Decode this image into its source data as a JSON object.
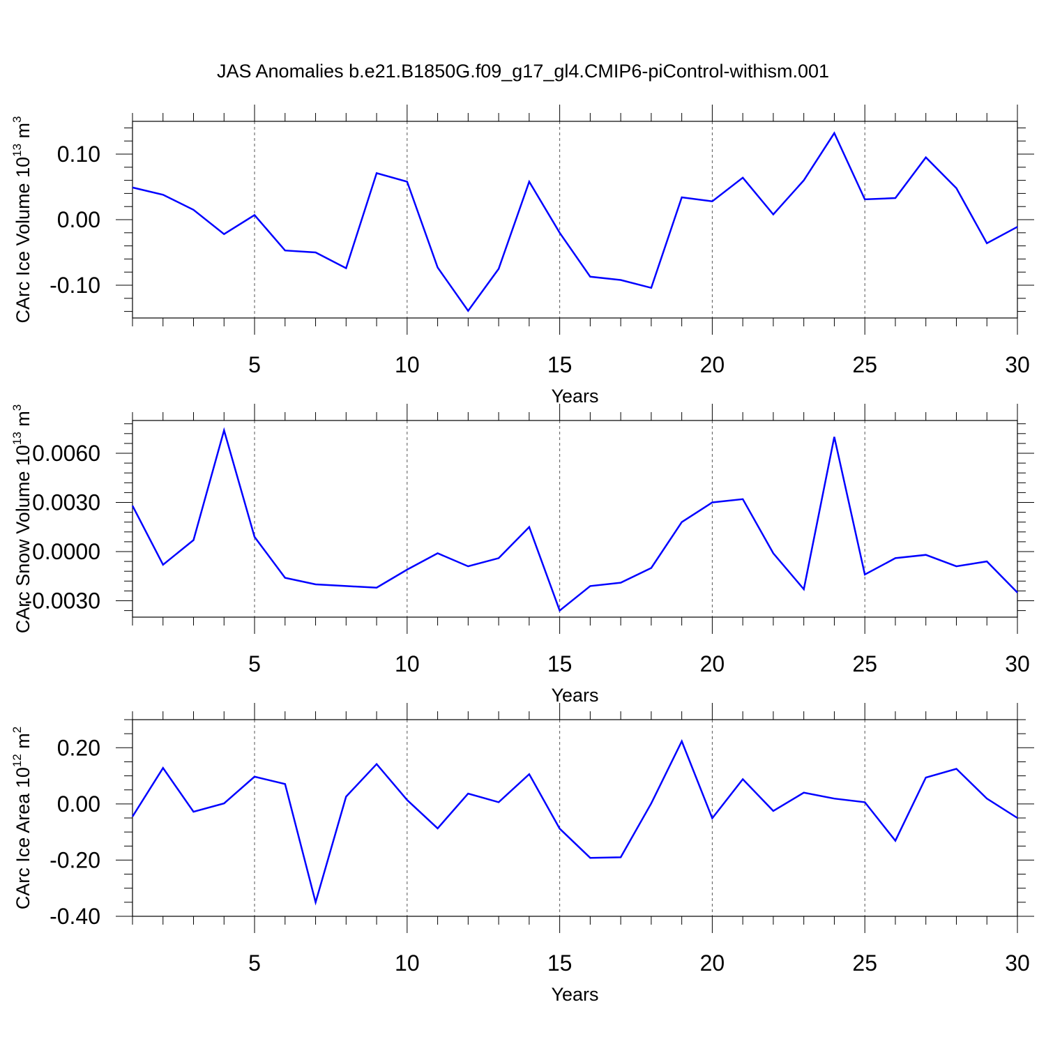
{
  "title": "JAS Anomalies b.e21.B1850G.f09_g17_gl4.CMIP6-piControl-withism.001",
  "chart_data": [
    {
      "type": "line",
      "ylabel_main": "CArc Ice Volume 10",
      "ylabel_exp": "13",
      "ylabel_unit": " m",
      "ylabel_unit_exp": "3",
      "xlabel": "Years",
      "xlim": [
        1,
        30
      ],
      "ylim": [
        -0.15,
        0.15
      ],
      "yticks": [
        -0.1,
        0.0,
        0.1
      ],
      "ytick_labels": [
        "-0.10",
        "0.00",
        "0.10"
      ],
      "y_minor_step": 0.02,
      "xticks": [
        5,
        10,
        15,
        20,
        25,
        30
      ],
      "xtick_labels": [
        "5",
        "10",
        "15",
        "20",
        "25",
        "30"
      ],
      "grid": "dashed vertical at major x ticks",
      "line_color": "#0000ff",
      "x": [
        1,
        2,
        3,
        4,
        5,
        6,
        7,
        8,
        9,
        10,
        11,
        12,
        13,
        14,
        15,
        16,
        17,
        18,
        19,
        20,
        21,
        22,
        23,
        24,
        25,
        26,
        27,
        28,
        29,
        30
      ],
      "y": [
        0.049,
        0.038,
        0.015,
        -0.022,
        0.007,
        -0.047,
        -0.05,
        -0.074,
        0.071,
        0.058,
        -0.073,
        -0.139,
        -0.075,
        0.058,
        -0.02,
        -0.087,
        -0.092,
        -0.104,
        0.034,
        0.028,
        0.064,
        0.008,
        0.06,
        0.132,
        0.031,
        0.033,
        0.095,
        0.048,
        -0.036,
        -0.011
      ]
    },
    {
      "type": "line",
      "ylabel_main": "CArc Snow Volume 10",
      "ylabel_exp": "13",
      "ylabel_unit": " m",
      "ylabel_unit_exp": "3",
      "xlabel": "Years",
      "xlim": [
        1,
        30
      ],
      "ylim": [
        -0.004,
        0.008
      ],
      "yticks": [
        -0.003,
        0.0,
        0.003,
        0.006
      ],
      "ytick_labels": [
        "-0.0030",
        "0.0000",
        "0.0030",
        "0.0060"
      ],
      "y_minor_step": 0.0006,
      "xticks": [
        5,
        10,
        15,
        20,
        25,
        30
      ],
      "xtick_labels": [
        "5",
        "10",
        "15",
        "20",
        "25",
        "30"
      ],
      "grid": "dashed vertical at major x ticks",
      "line_color": "#0000ff",
      "x": [
        1,
        2,
        3,
        4,
        5,
        6,
        7,
        8,
        9,
        10,
        11,
        12,
        13,
        14,
        15,
        16,
        17,
        18,
        19,
        20,
        21,
        22,
        23,
        24,
        25,
        26,
        27,
        28,
        29,
        30
      ],
      "y": [
        0.0028,
        -0.0008,
        0.0007,
        0.0074,
        0.0009,
        -0.0016,
        -0.002,
        -0.0021,
        -0.0022,
        -0.0011,
        -0.0001,
        -0.0009,
        -0.0004,
        0.0015,
        -0.0036,
        -0.0021,
        -0.0019,
        -0.001,
        0.0018,
        0.003,
        0.0032,
        -0.0001,
        -0.0023,
        0.007,
        -0.0014,
        -0.0004,
        -0.0002,
        -0.0009,
        -0.0006,
        -0.0025
      ]
    },
    {
      "type": "line",
      "ylabel_main": "CArc Ice Area 10",
      "ylabel_exp": "12",
      "ylabel_unit": " m",
      "ylabel_unit_exp": "2",
      "xlabel": "Years",
      "xlim": [
        1,
        30
      ],
      "ylim": [
        -0.4,
        0.3
      ],
      "yticks": [
        -0.4,
        -0.2,
        0.0,
        0.2
      ],
      "ytick_labels": [
        "-0.40",
        "-0.20",
        "0.00",
        "0.20"
      ],
      "y_minor_step": 0.05,
      "xticks": [
        5,
        10,
        15,
        20,
        25,
        30
      ],
      "xtick_labels": [
        "5",
        "10",
        "15",
        "20",
        "25",
        "30"
      ],
      "grid": "dashed vertical at major x ticks",
      "line_color": "#0000ff",
      "x": [
        1,
        2,
        3,
        4,
        5,
        6,
        7,
        8,
        9,
        10,
        11,
        12,
        13,
        14,
        15,
        16,
        17,
        18,
        19,
        20,
        21,
        22,
        23,
        24,
        25,
        26,
        27,
        28,
        29,
        30
      ],
      "y": [
        -0.045,
        0.128,
        -0.028,
        0.002,
        0.097,
        0.071,
        -0.35,
        0.026,
        0.142,
        0.014,
        -0.087,
        0.037,
        0.006,
        0.106,
        -0.088,
        -0.192,
        -0.19,
        0.002,
        0.223,
        -0.051,
        0.088,
        -0.025,
        0.04,
        0.019,
        0.006,
        -0.131,
        0.094,
        0.125,
        0.019,
        -0.05
      ]
    }
  ]
}
